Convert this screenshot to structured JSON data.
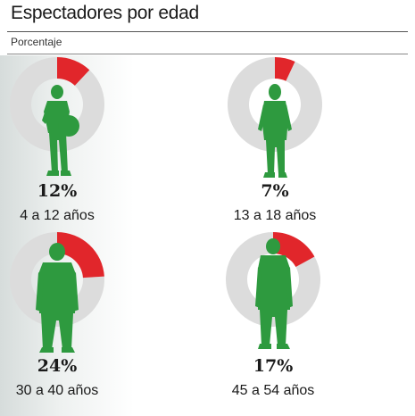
{
  "title": "Espectadores por edad",
  "subtitle": "Porcentaje",
  "colors": {
    "highlight": "#e1262b",
    "remainder": "#dcdcdc",
    "figure": "#2e9a3f"
  },
  "chart_data": {
    "type": "pie",
    "title": "Espectadores por edad",
    "subtitle": "Porcentaje",
    "unit": "%",
    "charts": [
      {
        "label": "4 a 12 años",
        "value": 12,
        "value_label": "12%",
        "icon": "child-with-ball-icon"
      },
      {
        "label": "13 a 18 años",
        "value": 7,
        "value_label": "7%",
        "icon": "teen-icon"
      },
      {
        "label": "30 a 40 años",
        "value": 24,
        "value_label": "24%",
        "icon": "adult-man-icon"
      },
      {
        "label": "45 a 54 años",
        "value": 17,
        "value_label": "17%",
        "icon": "older-man-icon"
      }
    ]
  }
}
